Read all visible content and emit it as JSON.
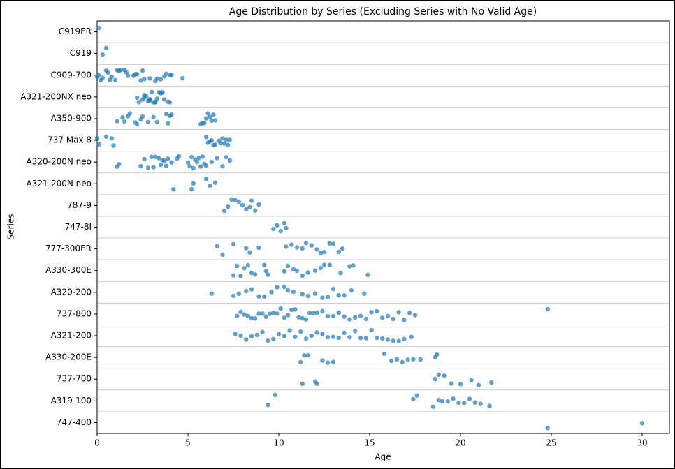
{
  "chart_data": {
    "type": "strip",
    "title": "Age Distribution by Series (Excluding Series with No Valid Age)",
    "x_label": "Age",
    "y_label": "Series",
    "color": "#1f77b4",
    "xlim": [
      0,
      31.5
    ],
    "xticks": [
      0,
      5,
      10,
      15,
      20,
      25,
      30
    ],
    "grid": true,
    "categories": [
      "C919ER",
      "C919",
      "C909-700",
      "A321-200NX neo",
      "A350-900",
      "737 Max 8",
      "A320-200N neo",
      "A321-200N neo",
      "787-9",
      "747-8I",
      "777-300ER",
      "A330-300E",
      "A320-200",
      "737-800",
      "A321-200",
      "A330-200E",
      "737-700",
      "A319-100",
      "747-400"
    ],
    "values": [
      [
        0.1
      ],
      [
        0.3,
        0.5
      ],
      [
        0.0,
        0.1,
        0.2,
        0.3,
        0.5,
        0.6,
        0.7,
        0.8,
        1.0,
        1.1,
        1.2,
        1.3,
        1.5,
        1.6,
        1.7,
        2.0,
        2.1,
        2.2,
        2.4,
        2.5,
        2.6,
        2.9,
        3.2,
        3.3,
        3.5,
        3.7,
        3.8,
        4.0,
        4.1,
        4.7
      ],
      [
        2.2,
        2.3,
        2.5,
        2.6,
        2.7,
        2.8,
        2.9,
        3.0,
        3.1,
        3.2,
        3.3,
        3.4,
        3.5,
        3.6,
        3.7,
        3.9,
        4.0,
        2.6,
        2.9,
        3.2
      ],
      [
        1.1,
        1.4,
        1.5,
        1.7,
        1.8,
        2.1,
        2.2,
        2.4,
        2.5,
        2.8,
        3.1,
        3.3,
        3.8,
        3.9,
        4.0,
        4.1,
        5.7,
        5.8,
        5.9,
        6.0,
        6.1,
        6.2,
        6.3,
        6.4,
        6.5
      ],
      [
        0.0,
        0.1,
        0.5,
        0.8,
        0.9,
        6.0,
        6.1,
        6.2,
        6.3,
        6.4,
        6.5,
        6.7,
        6.8,
        6.9,
        7.0,
        7.1,
        7.2,
        7.3
      ],
      [
        1.1,
        1.2,
        2.4,
        2.6,
        2.8,
        3.0,
        3.1,
        3.2,
        3.4,
        3.5,
        3.6,
        3.7,
        3.8,
        3.9,
        4.1,
        4.4,
        4.5,
        5.0,
        5.1,
        5.2,
        5.3,
        5.4,
        5.5,
        5.6,
        5.7,
        5.8,
        5.9,
        6.0,
        6.3,
        6.6,
        6.9,
        7.1,
        7.3
      ],
      [
        4.2,
        5.2,
        5.3,
        6.0,
        6.2,
        6.5
      ],
      [
        7.0,
        7.2,
        7.4,
        7.6,
        7.8,
        8.0,
        8.2,
        8.4,
        8.5,
        8.7,
        8.9
      ],
      [
        9.7,
        9.9,
        10.1,
        10.3,
        10.4
      ],
      [
        6.6,
        6.9,
        7.5,
        8.2,
        8.4,
        8.9,
        10.4,
        10.7,
        11.0,
        11.3,
        11.5,
        11.8,
        12.1,
        12.3,
        12.5,
        12.8,
        13.0,
        13.3,
        13.5
      ],
      [
        7.5,
        7.7,
        7.9,
        8.1,
        8.3,
        8.5,
        8.7,
        9.2,
        9.3,
        9.4,
        10.3,
        10.5,
        10.8,
        11.0,
        11.3,
        11.6,
        12.0,
        12.3,
        12.5,
        12.8,
        13.4,
        13.9,
        14.1,
        14.9
      ],
      [
        6.3,
        7.5,
        7.8,
        8.2,
        8.5,
        8.9,
        9.2,
        9.6,
        9.9,
        10.3,
        10.5,
        10.8,
        11.3,
        11.6,
        12.0,
        12.4,
        12.7,
        13.0,
        13.3,
        13.6,
        14.0,
        14.7
      ],
      [
        7.7,
        7.9,
        8.1,
        8.3,
        8.5,
        8.7,
        8.9,
        9.1,
        9.3,
        9.5,
        9.7,
        9.9,
        10.1,
        10.3,
        10.5,
        10.7,
        10.9,
        11.1,
        11.3,
        11.5,
        11.7,
        11.9,
        12.1,
        12.4,
        12.7,
        13.0,
        13.3,
        13.6,
        13.9,
        14.2,
        14.5,
        14.8,
        15.1,
        15.4,
        15.7,
        16.0,
        16.3,
        16.6,
        16.9,
        17.2,
        17.5,
        24.8
      ],
      [
        7.6,
        7.9,
        8.2,
        8.5,
        8.8,
        9.1,
        9.4,
        9.7,
        10.0,
        10.3,
        10.6,
        10.9,
        11.2,
        11.5,
        11.8,
        12.1,
        12.4,
        12.7,
        13.0,
        13.3,
        13.6,
        13.9,
        14.2,
        14.5,
        14.8,
        15.1,
        15.4,
        15.7,
        16.0,
        16.3,
        16.6,
        16.9,
        17.3
      ],
      [
        11.2,
        11.4,
        11.6,
        12.4,
        12.7,
        13.0,
        15.8,
        16.2,
        16.5,
        16.8,
        17.1,
        17.4,
        17.8,
        18.6,
        18.7
      ],
      [
        11.3,
        12.0,
        12.1,
        18.6,
        18.8,
        19.1,
        19.5,
        20.0,
        20.6,
        21.0,
        21.7
      ],
      [
        9.4,
        9.8,
        17.4,
        17.6,
        18.5,
        18.8,
        19.0,
        19.3,
        19.6,
        19.9,
        20.2,
        20.5,
        20.8,
        21.1,
        21.6
      ],
      [
        24.8,
        30.0
      ]
    ]
  }
}
